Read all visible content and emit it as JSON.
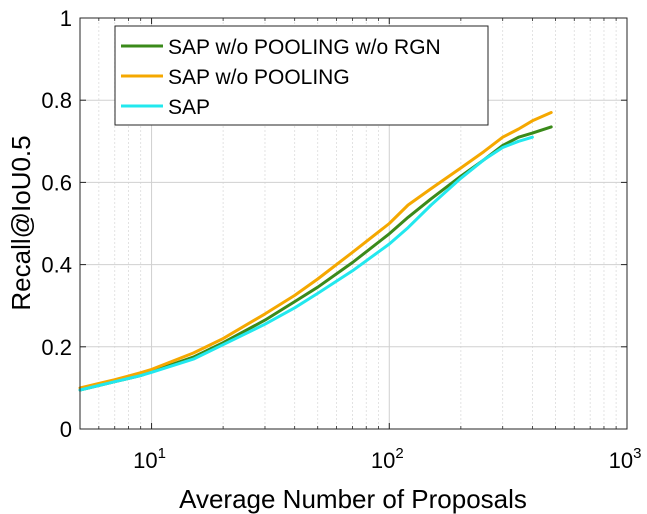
{
  "chart_data": {
    "type": "line",
    "title": "",
    "xlabel": "Average Number of Proposals",
    "ylabel": "Recall@IoU0.5",
    "xscale": "log",
    "xlim": [
      5,
      1000
    ],
    "ylim": [
      0,
      1
    ],
    "grid": true,
    "legend_position": "top-left",
    "yticks": [
      "0",
      "0.2",
      "0.4",
      "0.6",
      "0.8",
      "1"
    ],
    "xticks": [
      {
        "value": 10,
        "base": "10",
        "exp": "1"
      },
      {
        "value": 100,
        "base": "10",
        "exp": "2"
      },
      {
        "value": 1000,
        "base": "10",
        "exp": "3"
      }
    ],
    "series": [
      {
        "name": "SAP w/o POOLING w/o RGN",
        "color": "#3a8a1a",
        "points": [
          [
            5,
            0.095
          ],
          [
            7,
            0.115
          ],
          [
            9,
            0.13
          ],
          [
            10,
            0.14
          ],
          [
            15,
            0.175
          ],
          [
            20,
            0.21
          ],
          [
            30,
            0.265
          ],
          [
            40,
            0.31
          ],
          [
            50,
            0.345
          ],
          [
            70,
            0.405
          ],
          [
            100,
            0.475
          ],
          [
            120,
            0.515
          ],
          [
            150,
            0.56
          ],
          [
            200,
            0.615
          ],
          [
            250,
            0.655
          ],
          [
            300,
            0.69
          ],
          [
            350,
            0.71
          ],
          [
            400,
            0.72
          ],
          [
            480,
            0.735
          ]
        ]
      },
      {
        "name": "SAP w/o POOLING",
        "color": "#f5a800",
        "points": [
          [
            5,
            0.1
          ],
          [
            7,
            0.12
          ],
          [
            9,
            0.137
          ],
          [
            10,
            0.145
          ],
          [
            15,
            0.185
          ],
          [
            20,
            0.22
          ],
          [
            30,
            0.28
          ],
          [
            40,
            0.325
          ],
          [
            50,
            0.365
          ],
          [
            70,
            0.43
          ],
          [
            100,
            0.5
          ],
          [
            120,
            0.545
          ],
          [
            150,
            0.585
          ],
          [
            200,
            0.635
          ],
          [
            250,
            0.675
          ],
          [
            300,
            0.71
          ],
          [
            350,
            0.73
          ],
          [
            400,
            0.75
          ],
          [
            480,
            0.77
          ]
        ]
      },
      {
        "name": "SAP",
        "color": "#22e8ee",
        "points": [
          [
            5,
            0.095
          ],
          [
            7,
            0.115
          ],
          [
            9,
            0.13
          ],
          [
            10,
            0.138
          ],
          [
            15,
            0.17
          ],
          [
            20,
            0.205
          ],
          [
            30,
            0.255
          ],
          [
            40,
            0.295
          ],
          [
            50,
            0.33
          ],
          [
            70,
            0.385
          ],
          [
            100,
            0.45
          ],
          [
            120,
            0.49
          ],
          [
            150,
            0.545
          ],
          [
            200,
            0.61
          ],
          [
            250,
            0.655
          ],
          [
            300,
            0.685
          ],
          [
            350,
            0.7
          ],
          [
            400,
            0.71
          ]
        ]
      }
    ]
  }
}
